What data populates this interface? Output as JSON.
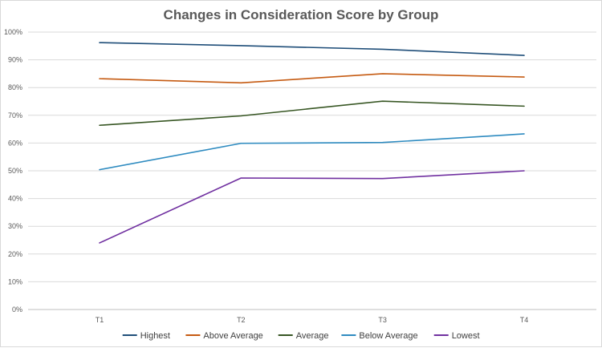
{
  "chart_data": {
    "type": "line",
    "title": "Changes in Consideration Score by Group",
    "xlabel": "",
    "ylabel": "",
    "categories": [
      "T1",
      "T2",
      "T3",
      "T4"
    ],
    "ylim": [
      0,
      100
    ],
    "y_ticks": [
      "0%",
      "10%",
      "20%",
      "30%",
      "40%",
      "50%",
      "60%",
      "70%",
      "80%",
      "90%",
      "100%"
    ],
    "grid": "horizontal",
    "legend_position": "bottom",
    "series": [
      {
        "name": "Highest",
        "color": "#1f4e79",
        "values": [
          96.2,
          95.1,
          93.8,
          91.6
        ]
      },
      {
        "name": "Above Average",
        "color": "#c55a11",
        "values": [
          83.2,
          81.7,
          85.0,
          83.8
        ]
      },
      {
        "name": "Average",
        "color": "#375623",
        "values": [
          66.4,
          69.8,
          75.1,
          73.3
        ]
      },
      {
        "name": "Below Average",
        "color": "#2e8bc0",
        "values": [
          50.4,
          59.9,
          60.2,
          63.3
        ]
      },
      {
        "name": "Lowest",
        "color": "#7030a0",
        "values": [
          24.0,
          47.4,
          47.2,
          50.0
        ]
      }
    ]
  }
}
